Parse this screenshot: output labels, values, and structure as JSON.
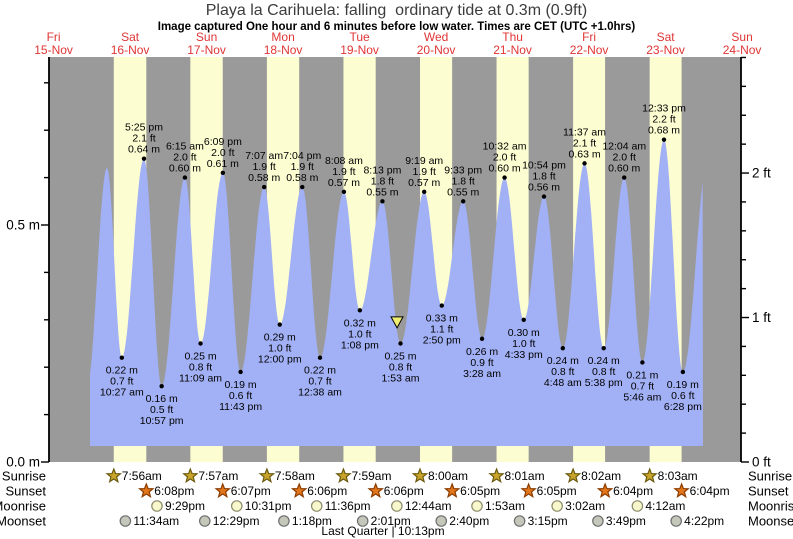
{
  "title": "Playa la Carihuela: falling  ordinary tide at 0.3m (0.9ft)",
  "subtitle": "Image captured One hour and 6 minutes before low water. Times are CET (UTC +1.0hrs)",
  "footer": {
    "moon_phase": "Last Quarter | 10:13pm"
  },
  "legend_rows": [
    "Sunrise",
    "Sunset",
    "Moonrise",
    "Moonset"
  ],
  "axes": {
    "left_unit": "m",
    "right_unit": "ft",
    "left_labels": [
      {
        "text": "0.5 m",
        "value_m": 0.5
      },
      {
        "text": "0.0 m",
        "value_m": 0.0
      }
    ],
    "right_labels": [
      {
        "text": "2 ft",
        "value_ft": 2
      },
      {
        "text": "1 ft",
        "value_ft": 1
      },
      {
        "text": "0 ft",
        "value_ft": 0
      }
    ]
  },
  "colors": {
    "night_band": "#9a9a9a",
    "daylight_band": "#fdfdd2",
    "water": "#a2b1f6",
    "day_label": "#e03535",
    "title_text": "#3c3c3c",
    "annotation_text": "#000000",
    "sunrise_star": "#c8a52a",
    "sunrise_star_edge": "#6b5b10",
    "sunset_star": "#e2761b",
    "sunset_star_edge": "#8a3c00",
    "moonrise_circle": "#f8f8cc",
    "moonrise_circle_edge": "#8a8a6a",
    "moonset_circle": "#c4c8ba",
    "moonset_circle_edge": "#6e6e6e",
    "now_marker": "#efec6f"
  },
  "chart_data": {
    "type": "area",
    "title": "Playa la Carihuela: falling  ordinary tide at 0.3m (0.9ft)",
    "ylabel_left": "m",
    "ylabel_right": "ft",
    "ylim_m": [
      0.0,
      0.854
    ],
    "grid": false,
    "days": [
      {
        "weekday": "Fri",
        "date": "15-Nov"
      },
      {
        "weekday": "Sat",
        "date": "16-Nov"
      },
      {
        "weekday": "Sun",
        "date": "17-Nov"
      },
      {
        "weekday": "Mon",
        "date": "18-Nov"
      },
      {
        "weekday": "Tue",
        "date": "19-Nov"
      },
      {
        "weekday": "Wed",
        "date": "20-Nov"
      },
      {
        "weekday": "Thu",
        "date": "21-Nov"
      },
      {
        "weekday": "Fri",
        "date": "22-Nov"
      },
      {
        "weekday": "Sat",
        "date": "23-Nov"
      },
      {
        "weekday": "Sun",
        "date": "24-Nov"
      }
    ],
    "tide_events": [
      {
        "day": 0,
        "time": "10:27 am",
        "kind": "low",
        "height_m": 0.22,
        "height_ft": 0.7
      },
      {
        "day": 0,
        "time": "5:25 pm",
        "kind": "high",
        "height_m": 0.64,
        "height_ft": 2.1
      },
      {
        "day": 0,
        "time": "10:57 pm",
        "kind": "low",
        "height_m": 0.16,
        "height_ft": 0.5
      },
      {
        "day": 1,
        "time": "6:15 am",
        "kind": "high",
        "height_m": 0.6,
        "height_ft": 2.0
      },
      {
        "day": 1,
        "time": "11:09 am",
        "kind": "low",
        "height_m": 0.25,
        "height_ft": 0.8
      },
      {
        "day": 1,
        "time": "6:09 pm",
        "kind": "high",
        "height_m": 0.61,
        "height_ft": 2.0
      },
      {
        "day": 1,
        "time": "11:43 pm",
        "kind": "low",
        "height_m": 0.19,
        "height_ft": 0.6
      },
      {
        "day": 2,
        "time": "7:07 am",
        "kind": "high",
        "height_m": 0.58,
        "height_ft": 1.9
      },
      {
        "day": 2,
        "time": "12:00 pm",
        "kind": "low",
        "height_m": 0.29,
        "height_ft": 1.0
      },
      {
        "day": 2,
        "time": "7:04 pm",
        "kind": "high",
        "height_m": 0.58,
        "height_ft": 1.9
      },
      {
        "day": 3,
        "time": "12:38 am",
        "kind": "low",
        "height_m": 0.22,
        "height_ft": 0.7
      },
      {
        "day": 3,
        "time": "8:08 am",
        "kind": "high",
        "height_m": 0.57,
        "height_ft": 1.9
      },
      {
        "day": 3,
        "time": "1:08 pm",
        "kind": "low",
        "height_m": 0.32,
        "height_ft": 1.0
      },
      {
        "day": 3,
        "time": "8:13 pm",
        "kind": "high",
        "height_m": 0.55,
        "height_ft": 1.8
      },
      {
        "day": 4,
        "time": "1:53 am",
        "kind": "low",
        "height_m": 0.25,
        "height_ft": 0.8
      },
      {
        "day": 4,
        "time": "9:19 am",
        "kind": "high",
        "height_m": 0.57,
        "height_ft": 1.9
      },
      {
        "day": 4,
        "time": "2:50 pm",
        "kind": "low",
        "height_m": 0.33,
        "height_ft": 1.1
      },
      {
        "day": 4,
        "time": "9:33 pm",
        "kind": "high",
        "height_m": 0.55,
        "height_ft": 1.8
      },
      {
        "day": 5,
        "time": "3:28 am",
        "kind": "low",
        "height_m": 0.26,
        "height_ft": 0.9
      },
      {
        "day": 5,
        "time": "10:32 am",
        "kind": "high",
        "height_m": 0.6,
        "height_ft": 2.0
      },
      {
        "day": 5,
        "time": "4:33 pm",
        "kind": "low",
        "height_m": 0.3,
        "height_ft": 1.0
      },
      {
        "day": 5,
        "time": "10:54 pm",
        "kind": "high",
        "height_m": 0.56,
        "height_ft": 1.8
      },
      {
        "day": 6,
        "time": "4:48 am",
        "kind": "low",
        "height_m": 0.24,
        "height_ft": 0.8
      },
      {
        "day": 6,
        "time": "11:37 am",
        "kind": "high",
        "height_m": 0.63,
        "height_ft": 2.1
      },
      {
        "day": 6,
        "time": "5:38 pm",
        "kind": "low",
        "height_m": 0.24,
        "height_ft": 0.8
      },
      {
        "day": 7,
        "time": "12:04 am",
        "kind": "high",
        "height_m": 0.6,
        "height_ft": 2.0
      },
      {
        "day": 7,
        "time": "5:46 am",
        "kind": "low",
        "height_m": 0.21,
        "height_ft": 0.7
      },
      {
        "day": 7,
        "time": "12:33 pm",
        "kind": "high",
        "height_m": 0.68,
        "height_ft": 2.2
      },
      {
        "day": 7,
        "time": "6:28 pm",
        "kind": "low",
        "height_m": 0.19,
        "height_ft": 0.6
      }
    ],
    "curve": {
      "start_t_days": 0.02,
      "end_t_days": 8.033,
      "unlabeled_anchors": [
        {
          "t": -0.02,
          "h": 0.16
        },
        {
          "t": 0.242,
          "h": 0.62
        },
        {
          "t": 8.1,
          "h": 0.64
        }
      ]
    },
    "now_marker_t_days": 4.033,
    "sun_moon": {
      "sunrise": [
        {
          "day": 0,
          "time": "7:56am"
        },
        {
          "day": 1,
          "time": "7:57am"
        },
        {
          "day": 2,
          "time": "7:58am"
        },
        {
          "day": 3,
          "time": "7:59am"
        },
        {
          "day": 4,
          "time": "8:00am"
        },
        {
          "day": 5,
          "time": "8:01am"
        },
        {
          "day": 6,
          "time": "8:02am"
        },
        {
          "day": 7,
          "time": "8:03am"
        }
      ],
      "sunset": [
        {
          "day": 0,
          "time": "6:08pm"
        },
        {
          "day": 1,
          "time": "6:07pm"
        },
        {
          "day": 2,
          "time": "6:06pm"
        },
        {
          "day": 3,
          "time": "6:06pm"
        },
        {
          "day": 4,
          "time": "6:05pm"
        },
        {
          "day": 5,
          "time": "6:05pm"
        },
        {
          "day": 6,
          "time": "6:04pm"
        },
        {
          "day": 7,
          "time": "6:04pm"
        }
      ],
      "moonrise": [
        {
          "day": 0,
          "time": "9:29pm"
        },
        {
          "day": 1,
          "time": "10:31pm"
        },
        {
          "day": 2,
          "time": "11:36pm"
        },
        {
          "day": 4,
          "time": "12:44am"
        },
        {
          "day": 5,
          "time": "1:53am"
        },
        {
          "day": 6,
          "time": "3:02am"
        },
        {
          "day": 7,
          "time": "4:12am"
        }
      ],
      "moonset": [
        {
          "day": 0,
          "time": "11:34am"
        },
        {
          "day": 1,
          "time": "12:29pm"
        },
        {
          "day": 2,
          "time": "1:18pm"
        },
        {
          "day": 3,
          "time": "2:01pm"
        },
        {
          "day": 4,
          "time": "2:40pm"
        },
        {
          "day": 5,
          "time": "3:15pm"
        },
        {
          "day": 6,
          "time": "3:49pm"
        },
        {
          "day": 7,
          "time": "4:22pm"
        }
      ]
    }
  }
}
